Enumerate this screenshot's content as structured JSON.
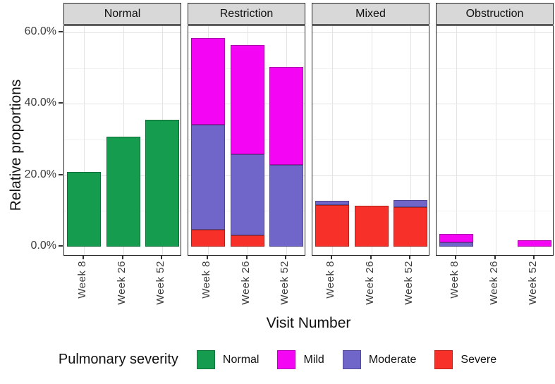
{
  "legend": {
    "title": "Pulmonary severity",
    "items": [
      {
        "label": "Normal",
        "color": "#169c4f"
      },
      {
        "label": "Mild",
        "color": "#f405f4"
      },
      {
        "label": "Moderate",
        "color": "#7065c9"
      },
      {
        "label": "Severe",
        "color": "#f8302a"
      }
    ]
  },
  "chart_data": {
    "type": "bar",
    "stacked": true,
    "title": "",
    "xlabel": "Visit Number",
    "ylabel": "Relative proportions",
    "categories": [
      "Week 8",
      "Week 26",
      "Week 52"
    ],
    "stack_order_bottom_to_top": [
      "Severe",
      "Moderate",
      "Mild",
      "Normal"
    ],
    "series_colors": {
      "Normal": "#169c4f",
      "Mild": "#f405f4",
      "Moderate": "#7065c9",
      "Severe": "#f8302a"
    },
    "ylim": [
      0,
      62
    ],
    "grid": true,
    "legend_position": "bottom",
    "y_ticks": [
      {
        "value": 0,
        "label": "0.0%"
      },
      {
        "value": 20,
        "label": "20.0%"
      },
      {
        "value": 40,
        "label": "40.0%"
      },
      {
        "value": 60,
        "label": "60.0%"
      }
    ],
    "y_minor_ticks": [
      10,
      30,
      50
    ],
    "facets": [
      {
        "label": "Normal",
        "bars": [
          {
            "category": "Week 8",
            "segments": {
              "Normal": 21.0
            }
          },
          {
            "category": "Week 26",
            "segments": {
              "Normal": 30.8
            }
          },
          {
            "category": "Week 52",
            "segments": {
              "Normal": 35.5
            }
          }
        ]
      },
      {
        "label": "Restriction",
        "bars": [
          {
            "category": "Week 8",
            "segments": {
              "Severe": 4.7,
              "Moderate": 29.4,
              "Mild": 24.3
            }
          },
          {
            "category": "Week 26",
            "segments": {
              "Severe": 3.2,
              "Moderate": 22.6,
              "Mild": 30.6
            }
          },
          {
            "category": "Week 52",
            "segments": {
              "Moderate": 22.9,
              "Mild": 27.4
            }
          }
        ]
      },
      {
        "label": "Mixed",
        "bars": [
          {
            "category": "Week 8",
            "segments": {
              "Severe": 11.6,
              "Moderate": 1.3
            }
          },
          {
            "category": "Week 26",
            "segments": {
              "Severe": 11.4
            }
          },
          {
            "category": "Week 52",
            "segments": {
              "Severe": 11.1,
              "Moderate": 1.9
            }
          }
        ]
      },
      {
        "label": "Obstruction",
        "bars": [
          {
            "category": "Week 8",
            "segments": {
              "Moderate": 1.2,
              "Mild": 2.4
            }
          },
          {
            "category": "Week 26",
            "segments": {}
          },
          {
            "category": "Week 52",
            "segments": {
              "Mild": 1.8
            }
          }
        ]
      }
    ]
  }
}
